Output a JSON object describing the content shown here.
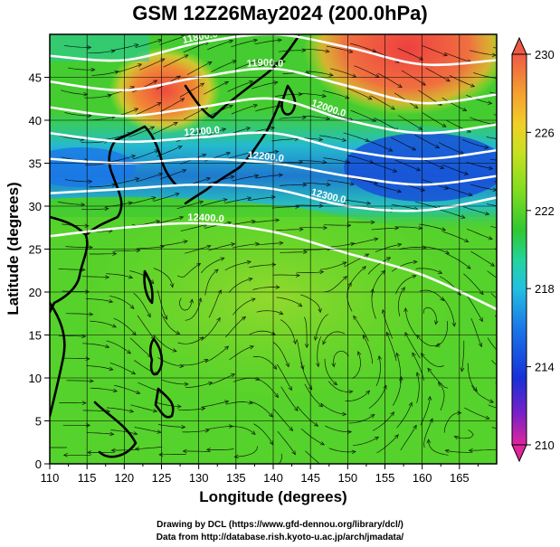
{
  "title": "GSM 12Z26May2024 (200.0hPa)",
  "map": {
    "x_axis": {
      "label": "Longitude (degrees)",
      "range": [
        110,
        170
      ],
      "ticks": [
        110,
        115,
        120,
        125,
        130,
        135,
        140,
        145,
        150,
        155,
        160,
        165
      ]
    },
    "y_axis": {
      "label": "Latitude  (degrees)",
      "range": [
        0,
        50
      ],
      "ticks": [
        0,
        5,
        10,
        15,
        20,
        25,
        30,
        35,
        40,
        45
      ]
    },
    "grid": true,
    "colorbar": {
      "range": [
        210,
        230
      ],
      "ticks": [
        210,
        214,
        218,
        222,
        226,
        230
      ],
      "colors": [
        "#e0259c",
        "#7a20c8",
        "#1830d8",
        "#1a78e8",
        "#22c0e0",
        "#22d4a0",
        "#30c830",
        "#80dd20",
        "#c8e020",
        "#f0d028",
        "#f5a030",
        "#ef5a45"
      ]
    },
    "contours": [
      {
        "label": "11800.0",
        "lon": [
          110,
          120,
          130,
          140,
          150,
          160,
          170
        ],
        "lat": [
          47.5,
          47.0,
          49.0,
          50.0,
          48.5,
          46.5,
          47.0
        ]
      },
      {
        "label": "11900.0",
        "lon": [
          110,
          120,
          130,
          140,
          150,
          160,
          170
        ],
        "lat": [
          44.5,
          43.5,
          45.0,
          46.0,
          44.0,
          42.0,
          43.0
        ]
      },
      {
        "label": "12000.0",
        "lon": [
          110,
          120,
          130,
          140,
          150,
          160,
          170
        ],
        "lat": [
          41.5,
          40.5,
          41.5,
          42.5,
          40.0,
          38.5,
          39.5
        ]
      },
      {
        "label": "12100.0",
        "lon": [
          110,
          120,
          130,
          140,
          150,
          160,
          170
        ],
        "lat": [
          38.5,
          37.5,
          38.0,
          38.5,
          36.5,
          35.5,
          36.5
        ]
      },
      {
        "label": "12200.0",
        "lon": [
          110,
          120,
          130,
          140,
          150,
          160,
          170
        ],
        "lat": [
          35.5,
          35.0,
          35.5,
          35.0,
          33.5,
          32.5,
          33.5
        ]
      },
      {
        "label": "12300.0",
        "lon": [
          110,
          120,
          130,
          140,
          150,
          160,
          170
        ],
        "lat": [
          31.5,
          32.0,
          32.5,
          32.0,
          30.0,
          29.5,
          31.0
        ]
      },
      {
        "label": "12400.0",
        "lon": [
          110,
          120,
          130,
          140,
          150,
          160,
          170
        ],
        "lat": [
          26.5,
          27.5,
          28.0,
          27.0,
          24.5,
          22.0,
          18.0
        ]
      }
    ]
  },
  "credits": {
    "line1": "Drawing by DCL (https://www.gfd-dennou.org/library/dcl/)",
    "line2": "Data from http://database.rish.kyoto-u.ac.jp/arch/jmadata/"
  }
}
